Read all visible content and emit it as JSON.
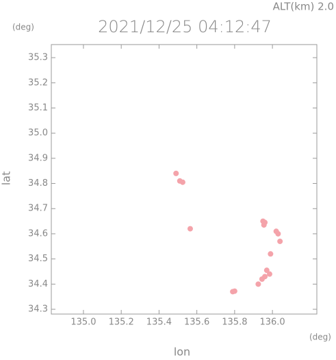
{
  "chart_data": {
    "type": "scatter",
    "title": "2021/12/25 04:12:47",
    "subtitle": "ALT(km) 2.0",
    "y_unit": "(deg)",
    "x_unit": "(deg)",
    "xlabel": "lon",
    "ylabel": "lat",
    "xlim": [
      134.83,
      136.235
    ],
    "ylim": [
      34.281,
      35.352
    ],
    "xticks": [
      {
        "value": 135.0,
        "label": "135.0"
      },
      135.2,
      135.4,
      135.6,
      135.8,
      {
        "value": 136.0,
        "label": "136.0"
      }
    ],
    "yticks": [
      34.3,
      34.4,
      34.5,
      34.6,
      34.7,
      34.8,
      34.9,
      {
        "value": 35.0,
        "label": "35.0"
      },
      35.1,
      35.2,
      35.3
    ],
    "color": "#f4a3aa",
    "x": [
      135.49,
      135.51,
      135.525,
      135.565,
      135.95,
      135.955,
      135.96,
      136.02,
      136.03,
      136.04,
      135.99,
      135.97,
      135.96,
      135.945,
      135.925,
      135.985,
      135.79,
      135.8
    ],
    "y": [
      34.84,
      34.81,
      34.805,
      34.62,
      34.65,
      34.635,
      34.645,
      34.61,
      34.6,
      34.57,
      34.52,
      34.455,
      34.43,
      34.42,
      34.4,
      34.44,
      34.37,
      34.372
    ]
  }
}
